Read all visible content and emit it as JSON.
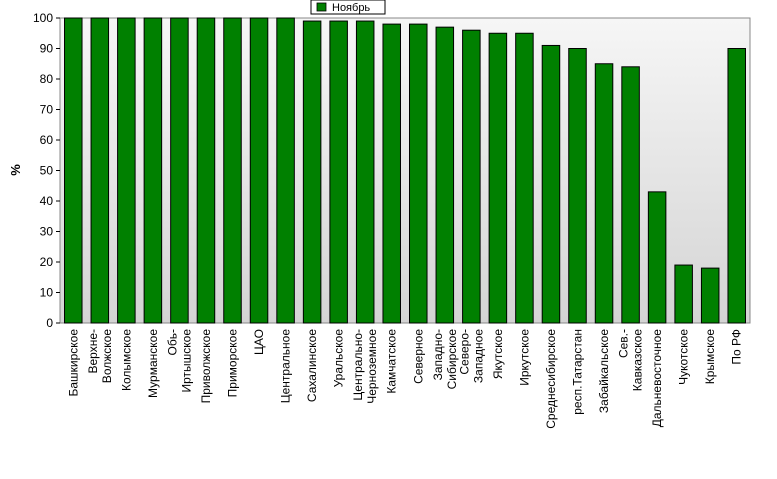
{
  "chart_data": {
    "type": "bar",
    "ylabel": "%",
    "ylim": [
      0,
      100
    ],
    "yticks": [
      0,
      10,
      20,
      30,
      40,
      50,
      60,
      70,
      80,
      90,
      100
    ],
    "grid": false,
    "legend": {
      "position": "top-center"
    },
    "series": [
      {
        "name": "Ноябрь",
        "color": "#008000",
        "values": [
          100,
          100,
          100,
          100,
          100,
          100,
          100,
          100,
          100,
          99,
          99,
          99,
          98,
          98,
          97,
          96,
          95,
          95,
          91,
          90,
          85,
          84,
          43,
          19,
          18,
          90
        ]
      }
    ],
    "categories": [
      "Башкирское",
      "Верхне-Волжское",
      "Колымское",
      "Мурманское",
      "Обь-Иртышское",
      "Приволжское",
      "Приморское",
      "ЦАО",
      "Центральное",
      "Сахалинское",
      "Уральское",
      "Центрально-Черноземное",
      "Камчатское",
      "Северное",
      "Западно-Сибирское",
      "Северо-Западное",
      "Якутское",
      "Иркутское",
      "Среднесибирское",
      "респ.Татарстан",
      "Забайкальское",
      "Сев.-Кавказское",
      "Дальневосточное",
      "Чукотское",
      "Крымское",
      "По РФ"
    ],
    "category_lines": [
      [
        "Башкирское"
      ],
      [
        "Верхне-",
        "Волжское"
      ],
      [
        "Колымское"
      ],
      [
        "Мурманское"
      ],
      [
        "Обь-",
        "Иртышское"
      ],
      [
        "Приволжское"
      ],
      [
        "Приморское"
      ],
      [
        "ЦАО"
      ],
      [
        "Центральное"
      ],
      [
        "Сахалинское"
      ],
      [
        "Уральское"
      ],
      [
        "Центрально-",
        "Черноземное"
      ],
      [
        "Камчатское"
      ],
      [
        "Северное"
      ],
      [
        "Западно-",
        "Сибирское"
      ],
      [
        "Северо-",
        "Западное"
      ],
      [
        "Якутское"
      ],
      [
        "Иркутское"
      ],
      [
        "Среднесибирское"
      ],
      [
        "респ.Татарстан"
      ],
      [
        "Забайкальское"
      ],
      [
        "Сев.-",
        "Кавказское"
      ],
      [
        "Дальневосточное"
      ],
      [
        "Чукотское"
      ],
      [
        "Крымское"
      ],
      [
        "По РФ"
      ]
    ]
  }
}
